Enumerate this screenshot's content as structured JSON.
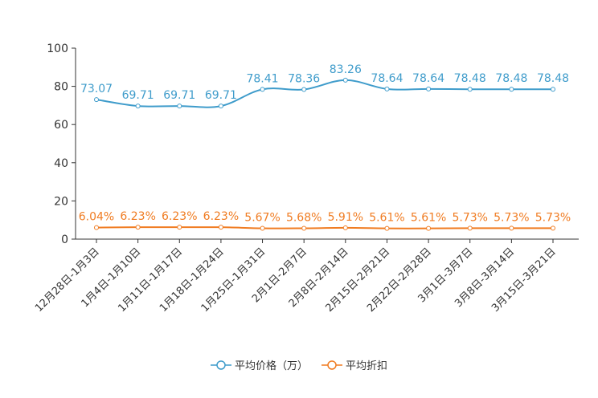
{
  "chart_data": {
    "type": "line",
    "title": "",
    "xlabel": "",
    "ylabel": "",
    "ylim": [
      0,
      100
    ],
    "yticks": [
      0,
      20,
      40,
      60,
      80,
      100
    ],
    "grid": false,
    "legend_position": "bottom-center",
    "categories": [
      "12月28日-1月3日",
      "1月4日-1月10日",
      "1月11日-1月17日",
      "1月18日-1月24日",
      "1月25日-1月31日",
      "2月1日-2月7日",
      "2月8日-2月14日",
      "2月15日-2月21日",
      "2月22日-2月28日",
      "3月1日-3月7日",
      "3月8日-3月14日",
      "3月15日-3月21日"
    ],
    "series": [
      {
        "name": "平均价格（万）",
        "color": "#3f9ccb",
        "values": [
          73.07,
          69.71,
          69.71,
          69.71,
          78.41,
          78.36,
          83.26,
          78.64,
          78.64,
          78.48,
          78.48,
          78.48
        ],
        "labels": [
          "73.07",
          "69.71",
          "69.71",
          "69.71",
          "78.41",
          "78.36",
          "83.26",
          "78.64",
          "78.64",
          "78.48",
          "78.48",
          "78.48"
        ]
      },
      {
        "name": "平均折扣",
        "color": "#f07c22",
        "values": [
          6.04,
          6.23,
          6.23,
          6.23,
          5.67,
          5.68,
          5.91,
          5.61,
          5.61,
          5.73,
          5.73,
          5.73
        ],
        "labels": [
          "6.04%",
          "6.23%",
          "6.23%",
          "6.23%",
          "5.67%",
          "5.68%",
          "5.91%",
          "5.61%",
          "5.61%",
          "5.73%",
          "5.73%",
          "5.73%"
        ]
      }
    ]
  }
}
